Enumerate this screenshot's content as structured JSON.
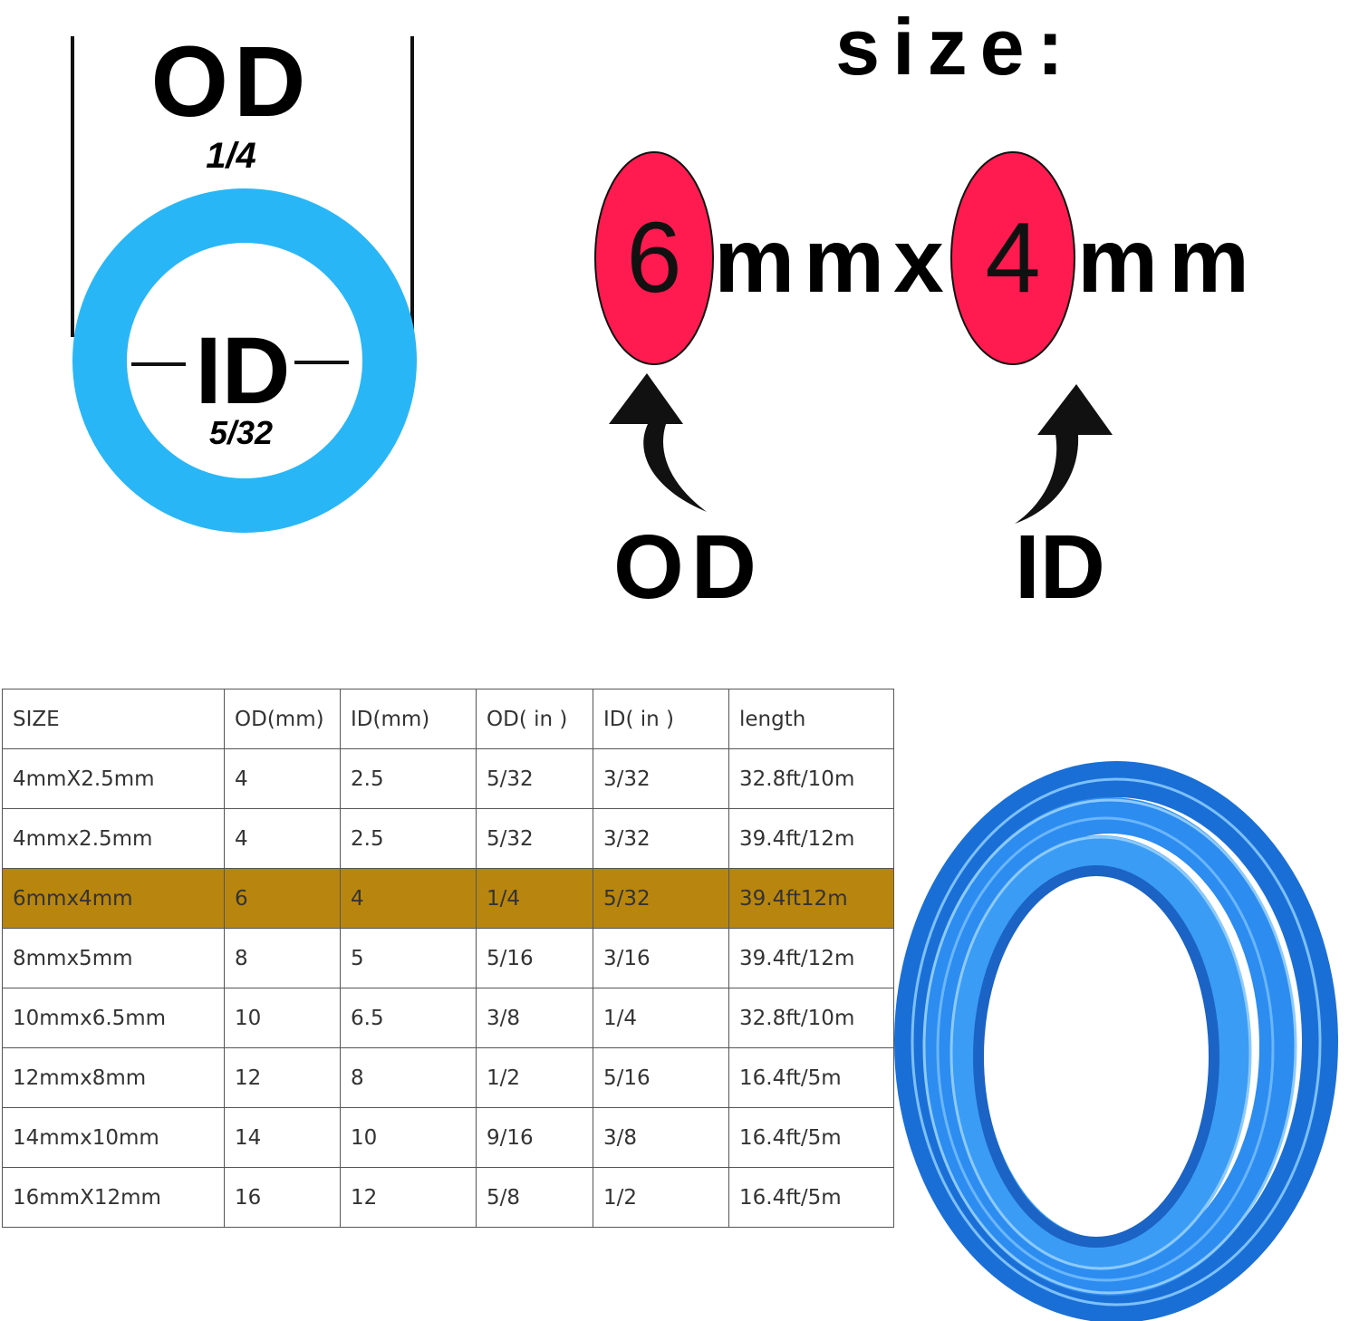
{
  "diagram": {
    "od_label": "OD",
    "od_value": "1/4",
    "id_label": "ID",
    "id_value": "5/32"
  },
  "size": {
    "title": "size:",
    "od_number": "6",
    "middle": "mmx",
    "id_number": "4",
    "unit": "mm",
    "od_arrow_label": "OD",
    "id_arrow_label": "ID"
  },
  "table": {
    "header": [
      "SIZE",
      "OD(mm)",
      "ID(mm)",
      "OD( in )",
      "ID( in )",
      "length"
    ],
    "highlight_row": 2,
    "rows": [
      [
        "4mmX2.5mm",
        "4",
        "2.5",
        "5/32",
        "3/32",
        "32.8ft/10m"
      ],
      [
        "4mmx2.5mm",
        "4",
        "2.5",
        "5/32",
        "3/32",
        "39.4ft/12m"
      ],
      [
        "6mmx4mm",
        "6",
        "4",
        "1/4",
        "5/32",
        "39.4ft12m"
      ],
      [
        "8mmx5mm",
        "8",
        "5",
        "5/16",
        "3/16",
        "39.4ft/12m"
      ],
      [
        "10mmx6.5mm",
        "10",
        "6.5",
        "3/8",
        "1/4",
        "32.8ft/10m"
      ],
      [
        "12mmx8mm",
        "12",
        "8",
        "1/2",
        "5/16",
        "16.4ft/5m"
      ],
      [
        "14mmx10mm",
        "14",
        "10",
        "9/16",
        "3/8",
        "16.4ft/5m"
      ],
      [
        "16mmX12mm",
        "16",
        "12",
        "5/8",
        "1/2",
        "16.4ft/5m"
      ]
    ]
  }
}
